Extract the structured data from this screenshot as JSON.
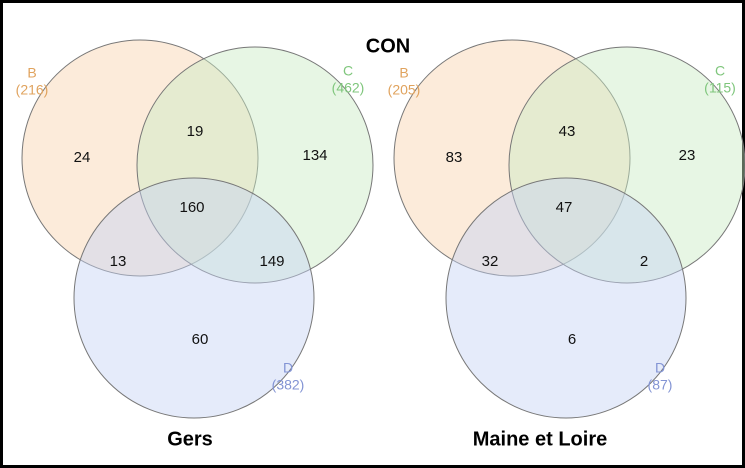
{
  "title": "CON",
  "diagrams": [
    {
      "label": "Gers",
      "sets": [
        {
          "name": "B",
          "count": "(216)"
        },
        {
          "name": "C",
          "count": "(462)"
        },
        {
          "name": "D",
          "count": "(382)"
        }
      ],
      "regions": [
        24,
        19,
        134,
        160,
        13,
        149,
        60
      ]
    },
    {
      "label": "Maine et Loire",
      "sets": [
        {
          "name": "B",
          "count": "(205)"
        },
        {
          "name": "C",
          "count": "(115)"
        },
        {
          "name": "D",
          "count": "(87)"
        }
      ],
      "regions": [
        83,
        43,
        23,
        47,
        32,
        2,
        6
      ]
    }
  ]
}
